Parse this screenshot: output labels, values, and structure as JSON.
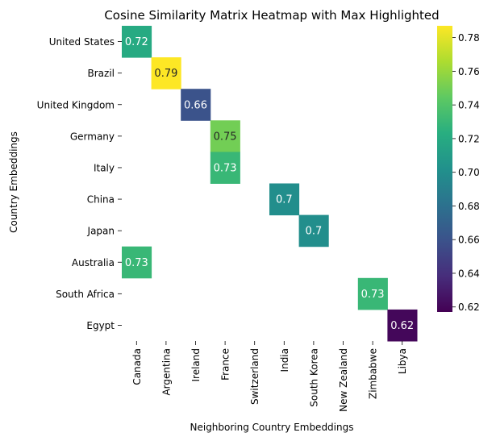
{
  "chart_data": {
    "type": "heatmap",
    "title": "Cosine Similarity Matrix Heatmap with Max Highlighted",
    "xlabel": "Neighboring Country Embeddings",
    "ylabel": "Country Embeddings",
    "x_categories": [
      "Canada",
      "Argentina",
      "Ireland",
      "France",
      "Switzerland",
      "India",
      "South Korea",
      "New Zealand",
      "Zimbabwe",
      "Libya"
    ],
    "y_categories": [
      "United States",
      "Brazil",
      "United Kingdom",
      "Germany",
      "Italy",
      "China",
      "Japan",
      "Australia",
      "South Africa",
      "Egypt"
    ],
    "cells": [
      {
        "row": "United States",
        "col": "Canada",
        "value": 0.72,
        "label": "0.72"
      },
      {
        "row": "Brazil",
        "col": "Argentina",
        "value": 0.79,
        "label": "0.79"
      },
      {
        "row": "United Kingdom",
        "col": "Ireland",
        "value": 0.66,
        "label": "0.66"
      },
      {
        "row": "Germany",
        "col": "France",
        "value": 0.75,
        "label": "0.75"
      },
      {
        "row": "Italy",
        "col": "France",
        "value": 0.73,
        "label": "0.73"
      },
      {
        "row": "China",
        "col": "India",
        "value": 0.7,
        "label": "0.7"
      },
      {
        "row": "Japan",
        "col": "South Korea",
        "value": 0.7,
        "label": "0.7"
      },
      {
        "row": "Australia",
        "col": "Canada",
        "value": 0.73,
        "label": "0.73"
      },
      {
        "row": "South Africa",
        "col": "Zimbabwe",
        "value": 0.73,
        "label": "0.73"
      },
      {
        "row": "Egypt",
        "col": "Libya",
        "value": 0.62,
        "label": "0.62"
      }
    ],
    "colorbar": {
      "colormap": "viridis",
      "min": 0.617,
      "max": 0.787,
      "ticks": [
        0.62,
        0.64,
        0.66,
        0.68,
        0.7,
        0.72,
        0.74,
        0.76,
        0.78
      ],
      "tick_labels": [
        "0.62",
        "0.64",
        "0.66",
        "0.68",
        "0.70",
        "0.72",
        "0.74",
        "0.76",
        "0.78"
      ]
    },
    "grid": false
  }
}
